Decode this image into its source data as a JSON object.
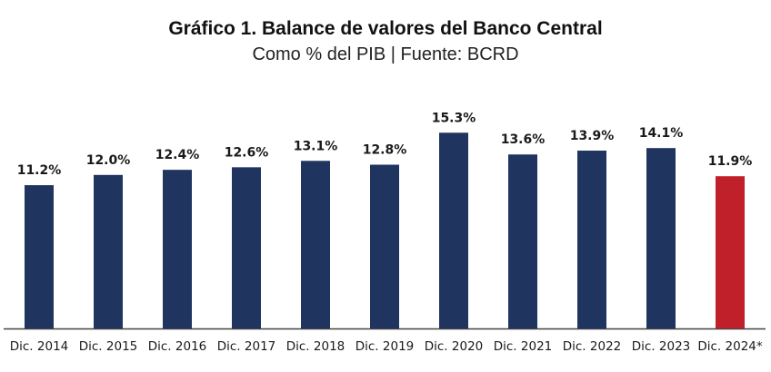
{
  "chart_data": {
    "type": "bar",
    "title": "Gráfico 1. Balance de valores del Banco Central",
    "subtitle": "Como % del PIB | Fuente: BCRD",
    "xlabel": "",
    "ylabel": "",
    "ylim": [
      0,
      16
    ],
    "grid": false,
    "categories": [
      "Dic. 2014",
      "Dic. 2015",
      "Dic. 2016",
      "Dic. 2017",
      "Dic. 2018",
      "Dic. 2019",
      "Dic. 2020",
      "Dic. 2021",
      "Dic. 2022",
      "Dic. 2023",
      "Dic. 2024*"
    ],
    "values": [
      11.2,
      12.0,
      12.4,
      12.6,
      13.1,
      12.8,
      15.3,
      13.6,
      13.9,
      14.1,
      11.9
    ],
    "value_labels": [
      "11.2%",
      "12.0%",
      "12.4%",
      "12.6%",
      "13.1%",
      "12.8%",
      "15.3%",
      "13.6%",
      "13.9%",
      "14.1%",
      "11.9%"
    ],
    "colors": [
      "#1f3560",
      "#1f3560",
      "#1f3560",
      "#1f3560",
      "#1f3560",
      "#1f3560",
      "#1f3560",
      "#1f3560",
      "#1f3560",
      "#1f3560",
      "#c0202a"
    ]
  }
}
